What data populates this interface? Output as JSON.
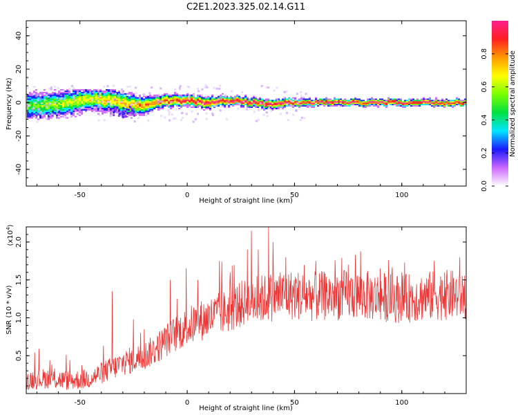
{
  "title": "C2E1.2023.325.02.14.G11",
  "chart_data": [
    {
      "type": "heatmap",
      "xlabel": "Height of straight line (km)",
      "ylabel": "Frequency (Hz)",
      "xlim": [
        -75,
        130
      ],
      "ylim": [
        -50,
        49
      ],
      "xticks": [
        -50,
        0,
        50,
        100
      ],
      "yticks": [
        -40,
        -20,
        0,
        20,
        40
      ],
      "ridge": {
        "x": [
          -75,
          -60,
          -45,
          -35,
          -28,
          -22,
          -15,
          -10,
          0,
          10,
          20,
          30,
          35,
          45,
          60,
          80,
          100,
          130
        ],
        "freq": [
          -2,
          -1,
          2,
          1,
          -1,
          -2,
          0,
          1,
          1,
          0,
          1,
          0,
          -1,
          0,
          0,
          0,
          0,
          0
        ],
        "width": [
          6,
          6,
          5,
          5,
          5,
          4,
          3,
          3,
          2.5,
          2.5,
          2,
          2,
          2,
          2,
          1.5,
          1.5,
          1.5,
          1.5
        ]
      },
      "colorbar": {
        "label": "Normalized spectral amplitude",
        "range": [
          0,
          1
        ],
        "ticks": [
          "0.0",
          "0.2",
          "0.4",
          "0.6",
          "0.8"
        ],
        "colors": [
          "#ffffff",
          "#cc66ff",
          "#1a1aff",
          "#00e5ff",
          "#00e040",
          "#7aff00",
          "#ffff00",
          "#ff9900",
          "#ff2020",
          "#ff1f8f"
        ]
      },
      "grid": false
    },
    {
      "type": "line",
      "xlabel": "Height of straight line (km)",
      "ylabel": "SNR (10 * v/v)",
      "multiplier_label": "(x10",
      "multiplier_exp": "4",
      "multiplier_close": ")",
      "xlim": [
        -75,
        130
      ],
      "ylim": [
        0.0,
        2.2
      ],
      "xticks": [
        -50,
        0,
        50,
        100
      ],
      "yticks": [
        "0.5",
        "1.0",
        "1.5",
        "2.0"
      ],
      "series": [
        {
          "color": "#ee3333",
          "x": [
            -75,
            -65,
            -55,
            -45,
            -40,
            -35,
            -30,
            -25,
            -20,
            -15,
            -10,
            -5,
            0,
            5,
            10,
            15,
            20,
            25,
            30,
            35,
            40,
            45,
            50,
            60,
            70,
            80,
            90,
            100,
            110,
            120,
            130
          ],
          "values": [
            0.18,
            0.2,
            0.17,
            0.2,
            0.27,
            0.33,
            0.4,
            0.45,
            0.5,
            0.58,
            0.7,
            0.8,
            0.88,
            0.95,
            1.0,
            1.05,
            1.1,
            1.18,
            1.22,
            1.25,
            1.28,
            1.3,
            1.3,
            1.28,
            1.3,
            1.3,
            1.28,
            1.25,
            1.28,
            1.3,
            1.3
          ],
          "peaks": [
            [
              -35,
              1.35
            ],
            [
              -25,
              0.98
            ],
            [
              -20,
              0.85
            ],
            [
              -8,
              1.5
            ],
            [
              5,
              1.5
            ],
            [
              15,
              1.75
            ],
            [
              20,
              1.6
            ],
            [
              28,
              1.9
            ],
            [
              30,
              2.15
            ],
            [
              33,
              1.9
            ],
            [
              38,
              2.2
            ],
            [
              40,
              2.0
            ],
            [
              46,
              1.8
            ],
            [
              60,
              1.75
            ],
            [
              75,
              1.7
            ],
            [
              90,
              1.65
            ],
            [
              100,
              1.6
            ],
            [
              115,
              1.75
            ],
            [
              120,
              1.6
            ],
            [
              127,
              1.8
            ]
          ]
        }
      ]
    }
  ]
}
